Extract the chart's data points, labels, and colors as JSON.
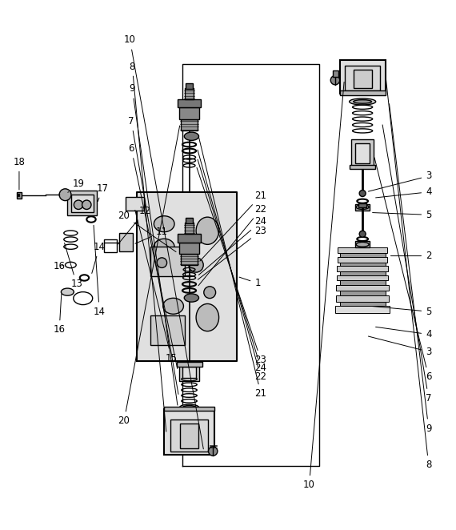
{
  "figure_width": 5.7,
  "figure_height": 6.62,
  "dpi": 100,
  "bg_color": "#ffffff",
  "line_color": "#000000"
}
